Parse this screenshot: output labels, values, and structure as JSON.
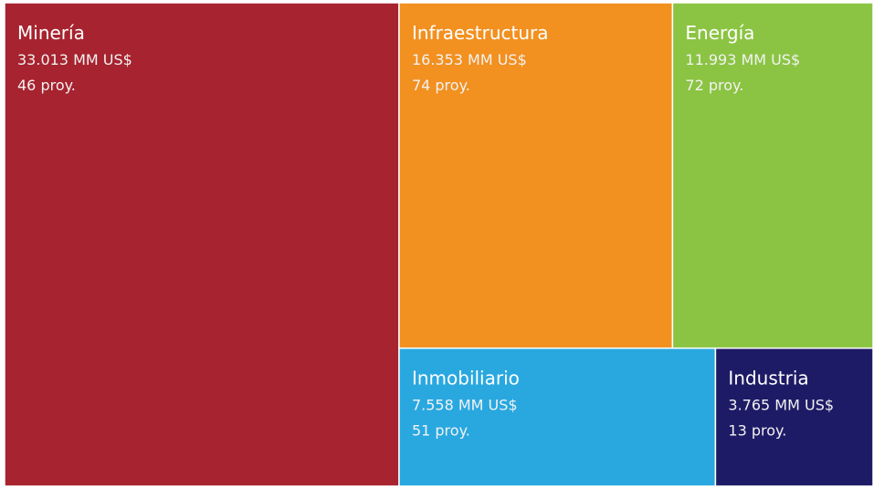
{
  "chart_data": {
    "type": "treemap",
    "categories": [
      "Minería",
      "Infraestructura",
      "Energía",
      "Inmobiliario",
      "Industria"
    ],
    "values": [
      33013,
      16353,
      11993,
      7558,
      3765
    ],
    "value_labels": [
      "33.013 MM US$",
      "16.353 MM US$",
      "11.993 MM US$",
      "7.558 MM US$",
      "3.765 MM US$"
    ],
    "counts": [
      46,
      74,
      72,
      51,
      13
    ],
    "count_labels": [
      "46 proy.",
      "74 proy.",
      "72 proy.",
      "51 proy.",
      "13 proy."
    ],
    "colors": [
      "#a7232f",
      "#f29020",
      "#8bc443",
      "#29a8e0",
      "#1e1b66"
    ]
  }
}
